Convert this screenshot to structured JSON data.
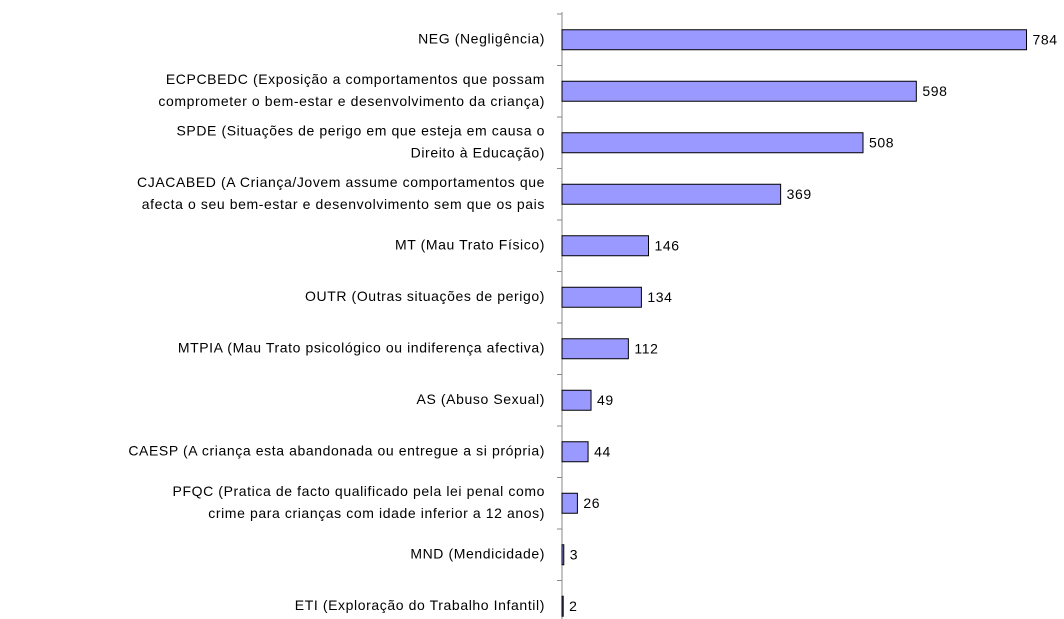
{
  "chart_data": {
    "type": "bar",
    "orientation": "horizontal",
    "categories": [
      [
        "NEG  (Negligência)"
      ],
      [
        "ECPCBEDC  (Exposição a comportamentos que possam",
        "comprometer o bem-estar e desenvolvimento da criança)"
      ],
      [
        "SPDE  (Situações de perigo em que esteja em causa o",
        "Direito à Educação)"
      ],
      [
        "CJACABED  (A Criança/Jovem assume comportamentos que",
        "afecta o seu bem-estar e desenvolvimento sem que os pais"
      ],
      [
        "MT  (Mau Trato Físico)"
      ],
      [
        "OUTR  (Outras situações de perigo)"
      ],
      [
        "MTPIA  (Mau Trato psicológico ou indiferença afectiva)"
      ],
      [
        "AS  (Abuso Sexual)"
      ],
      [
        "CAESP  (A criança esta abandonada ou entregue a si própria)"
      ],
      [
        "PFQC  (Pratica de facto qualificado pela lei penal como",
        "crime para crianças com idade inferior a 12 anos)"
      ],
      [
        "MND  (Mendicidade)"
      ],
      [
        "ETI  (Exploração do Trabalho Infantil)"
      ]
    ],
    "values": [
      784,
      598,
      508,
      369,
      146,
      134,
      112,
      49,
      44,
      26,
      3,
      2
    ],
    "color": "#9999ff",
    "xlim": [
      0,
      800
    ]
  }
}
